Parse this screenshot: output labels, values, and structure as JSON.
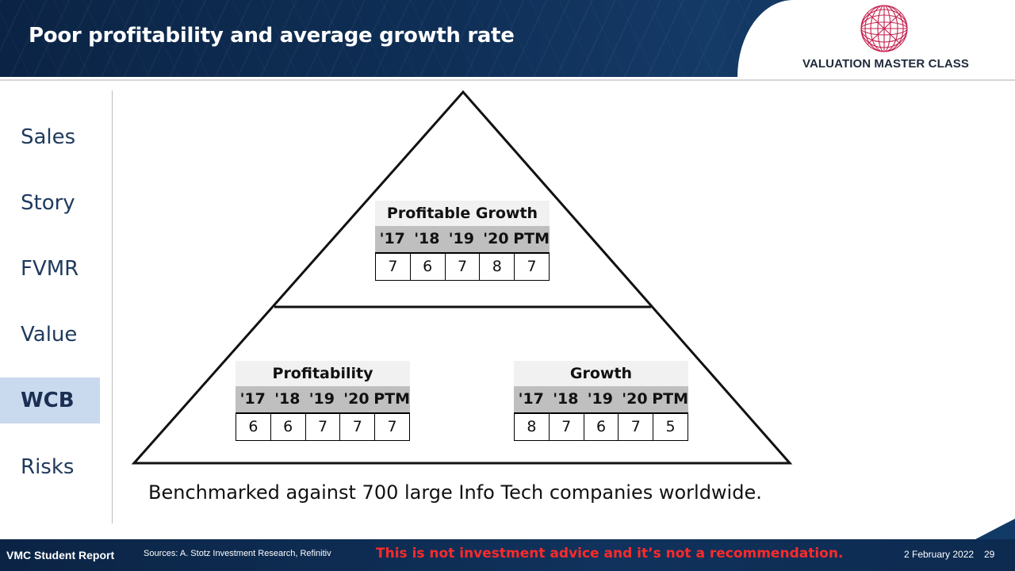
{
  "header": {
    "title": "Poor profitability and average growth rate",
    "brand": "VALUATION MASTER CLASS",
    "brand_icon": "globe-icon",
    "brand_color": "#c4204e"
  },
  "sidebar": {
    "items": [
      {
        "label": "Sales",
        "active": false
      },
      {
        "label": "Story",
        "active": false
      },
      {
        "label": "FVMR",
        "active": false
      },
      {
        "label": "Value",
        "active": false
      },
      {
        "label": "WCB",
        "active": true
      },
      {
        "label": "Risks",
        "active": false
      }
    ]
  },
  "tables": {
    "profitable_growth": {
      "title": "Profitable Growth",
      "columns": [
        "'17",
        "'18",
        "'19",
        "'20",
        "PTM"
      ],
      "values": [
        "7",
        "6",
        "7",
        "8",
        "7"
      ]
    },
    "profitability": {
      "title": "Profitability",
      "columns": [
        "'17",
        "'18",
        "'19",
        "'20",
        "PTM"
      ],
      "values": [
        "6",
        "6",
        "7",
        "7",
        "7"
      ]
    },
    "growth": {
      "title": "Growth",
      "columns": [
        "'17",
        "'18",
        "'19",
        "'20",
        "PTM"
      ],
      "values": [
        "8",
        "7",
        "6",
        "7",
        "5"
      ]
    }
  },
  "note": "Benchmarked against 700 large Info Tech companies worldwide.",
  "footer": {
    "report": "VMC Student Report",
    "sources": "Sources: A. Stotz Investment Research, Refinitiv",
    "warning": "This is not investment advice and it’s not a recommendation.",
    "date": "2 February 2022",
    "page": "29"
  }
}
